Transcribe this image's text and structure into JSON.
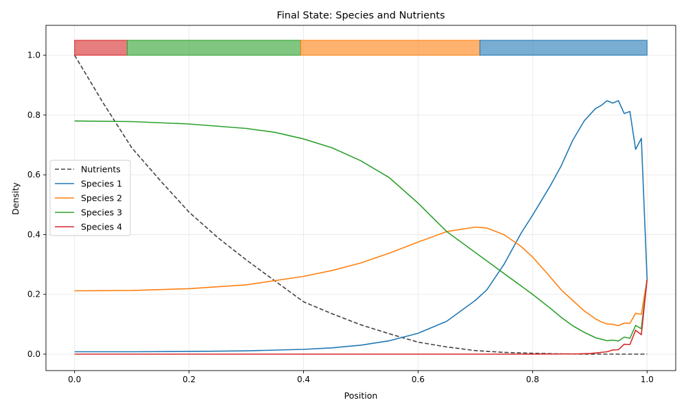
{
  "colors": {
    "nutrients": "#404040",
    "species1": "#1f77b4",
    "species2": "#ff7f0e",
    "species3": "#2ca02c",
    "species4": "#d62728",
    "grid": "#e6e6e6",
    "axes": "#000000"
  },
  "chart_data": {
    "type": "line",
    "title": "Final State: Species and Nutrients",
    "xlabel": "Position",
    "ylabel": "Density",
    "xlim": [
      -0.05,
      1.05
    ],
    "ylim": [
      -0.055,
      1.1
    ],
    "xticks": [
      0.0,
      0.2,
      0.4,
      0.6,
      0.8,
      1.0
    ],
    "xtick_labels": [
      "0.0",
      "0.2",
      "0.4",
      "0.6",
      "0.8",
      "1.0"
    ],
    "yticks": [
      0.0,
      0.2,
      0.4,
      0.6,
      0.8,
      1.0
    ],
    "ytick_labels": [
      "0.0",
      "0.2",
      "0.4",
      "0.6",
      "0.8",
      "1.0"
    ],
    "grid": true,
    "legend": "center-left",
    "dominance_bands": [
      {
        "series": "Species 4",
        "x0": 0.0,
        "x1": 0.092,
        "y0": 1.0,
        "y1": 1.05
      },
      {
        "series": "Species 3",
        "x0": 0.092,
        "x1": 0.395,
        "y0": 1.0,
        "y1": 1.05
      },
      {
        "series": "Species 2",
        "x0": 0.395,
        "x1": 0.708,
        "y0": 1.0,
        "y1": 1.05
      },
      {
        "series": "Species 1",
        "x0": 0.708,
        "x1": 1.0,
        "y0": 1.0,
        "y1": 1.05
      }
    ],
    "series": [
      {
        "name": "Nutrients",
        "style": "dashed",
        "x": [
          0.0,
          0.05,
          0.1,
          0.15,
          0.2,
          0.25,
          0.3,
          0.35,
          0.4,
          0.45,
          0.5,
          0.55,
          0.6,
          0.65,
          0.7,
          0.75,
          0.8,
          0.85,
          0.9,
          0.95,
          1.0
        ],
        "y": [
          1.0,
          0.84,
          0.69,
          0.58,
          0.475,
          0.39,
          0.315,
          0.245,
          0.175,
          0.135,
          0.098,
          0.068,
          0.04,
          0.024,
          0.012,
          0.006,
          0.003,
          0.001,
          0.0,
          0.0,
          0.0
        ]
      },
      {
        "name": "Species 1",
        "style": "solid",
        "x": [
          0.0,
          0.1,
          0.2,
          0.3,
          0.4,
          0.45,
          0.5,
          0.55,
          0.6,
          0.65,
          0.7,
          0.72,
          0.75,
          0.78,
          0.8,
          0.83,
          0.85,
          0.87,
          0.89,
          0.91,
          0.92,
          0.93,
          0.94,
          0.95,
          0.96,
          0.97,
          0.98,
          0.99,
          1.0
        ],
        "y": [
          0.008,
          0.008,
          0.009,
          0.011,
          0.016,
          0.021,
          0.03,
          0.045,
          0.07,
          0.11,
          0.18,
          0.215,
          0.3,
          0.405,
          0.465,
          0.56,
          0.63,
          0.715,
          0.78,
          0.822,
          0.832,
          0.848,
          0.84,
          0.848,
          0.805,
          0.812,
          0.685,
          0.722,
          0.25
        ]
      },
      {
        "name": "Species 2",
        "style": "solid",
        "x": [
          0.0,
          0.1,
          0.2,
          0.3,
          0.4,
          0.45,
          0.5,
          0.55,
          0.6,
          0.65,
          0.7,
          0.72,
          0.75,
          0.78,
          0.8,
          0.83,
          0.85,
          0.87,
          0.89,
          0.91,
          0.92,
          0.93,
          0.94,
          0.95,
          0.96,
          0.97,
          0.98,
          0.99,
          1.0
        ],
        "y": [
          0.212,
          0.213,
          0.219,
          0.232,
          0.26,
          0.28,
          0.305,
          0.338,
          0.375,
          0.41,
          0.425,
          0.422,
          0.4,
          0.36,
          0.325,
          0.26,
          0.215,
          0.18,
          0.145,
          0.118,
          0.108,
          0.101,
          0.1,
          0.095,
          0.104,
          0.103,
          0.137,
          0.133,
          0.25
        ]
      },
      {
        "name": "Species 3",
        "style": "solid",
        "x": [
          0.0,
          0.1,
          0.2,
          0.3,
          0.35,
          0.4,
          0.45,
          0.5,
          0.55,
          0.6,
          0.65,
          0.7,
          0.75,
          0.8,
          0.83,
          0.85,
          0.87,
          0.89,
          0.91,
          0.92,
          0.93,
          0.94,
          0.95,
          0.96,
          0.97,
          0.98,
          0.99,
          1.0
        ],
        "y": [
          0.78,
          0.778,
          0.77,
          0.755,
          0.742,
          0.72,
          0.69,
          0.647,
          0.59,
          0.505,
          0.41,
          0.34,
          0.27,
          0.2,
          0.155,
          0.123,
          0.095,
          0.073,
          0.055,
          0.05,
          0.045,
          0.047,
          0.044,
          0.057,
          0.053,
          0.096,
          0.085,
          0.25
        ]
      },
      {
        "name": "Species 4",
        "style": "solid",
        "x": [
          0.0,
          0.2,
          0.4,
          0.6,
          0.8,
          0.88,
          0.9,
          0.91,
          0.92,
          0.93,
          0.94,
          0.95,
          0.96,
          0.97,
          0.98,
          0.99,
          1.0
        ],
        "y": [
          0.0,
          0.0,
          0.0,
          0.0,
          0.0,
          0.001,
          0.002,
          0.004,
          0.006,
          0.008,
          0.014,
          0.015,
          0.033,
          0.032,
          0.08,
          0.065,
          0.25
        ]
      }
    ]
  }
}
